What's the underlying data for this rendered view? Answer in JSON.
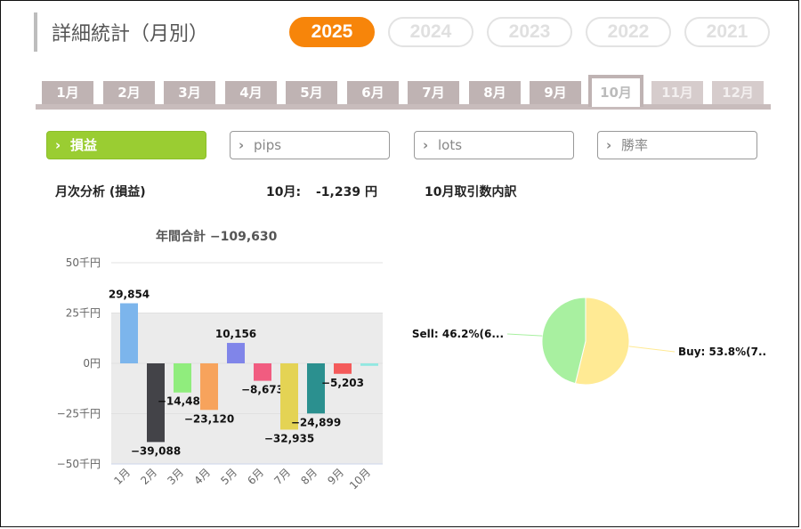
{
  "page_title": "詳細統計（月別）",
  "years": [
    {
      "label": "2025",
      "active": true
    },
    {
      "label": "2024",
      "active": false
    },
    {
      "label": "2023",
      "active": false
    },
    {
      "label": "2022",
      "active": false
    },
    {
      "label": "2021",
      "active": false
    }
  ],
  "months": [
    "1月",
    "2月",
    "3月",
    "4月",
    "5月",
    "6月",
    "7月",
    "8月",
    "9月",
    "10月",
    "11月",
    "12月"
  ],
  "active_month_index": 9,
  "metrics": [
    {
      "label": "損益",
      "active": true
    },
    {
      "label": "pips",
      "active": false
    },
    {
      "label": "lots",
      "active": false
    },
    {
      "label": "勝率",
      "active": false
    }
  ],
  "headings": {
    "monthly_analysis": "月次分析 (損益)",
    "month_prefix": "10月:",
    "month_total": "-1,239 円",
    "breakdown": "10月取引数内訳"
  },
  "annual_total": "年間合計 −109,630",
  "chart_data": [
    {
      "type": "bar",
      "categories": [
        "1月",
        "2月",
        "3月",
        "4月",
        "5月",
        "6月",
        "7月",
        "8月",
        "9月",
        "10月"
      ],
      "values": [
        29854,
        -39088,
        -14483,
        -23120,
        10156,
        -8673,
        -32935,
        -24899,
        -5203,
        -1239
      ],
      "data_labels": [
        "29,854",
        "−39,088",
        "−14,483",
        "−23,120",
        "10,156",
        "−8,673",
        "−32,935",
        "−24,899",
        "−5,203",
        ""
      ],
      "colors": [
        "#7cb5ec",
        "#434348",
        "#90ed7d",
        "#f7a35c",
        "#8085e9",
        "#f15c80",
        "#e4d354",
        "#2b908f",
        "#f45b5b",
        "#91e8e1"
      ],
      "yticks": [
        50000,
        25000,
        0,
        -25000,
        -50000
      ],
      "ytick_labels": [
        "50千円",
        "25千円",
        "0円",
        "−25千円",
        "−50千円"
      ],
      "ylim": [
        -50000,
        50000
      ],
      "grid": true
    },
    {
      "type": "pie",
      "labels": [
        "Buy: 53.8%(7..",
        "Sell: 46.2%(6..."
      ],
      "values": [
        53.8,
        46.2
      ],
      "colors": [
        "#ffea94",
        "#a8f0a0"
      ]
    }
  ]
}
